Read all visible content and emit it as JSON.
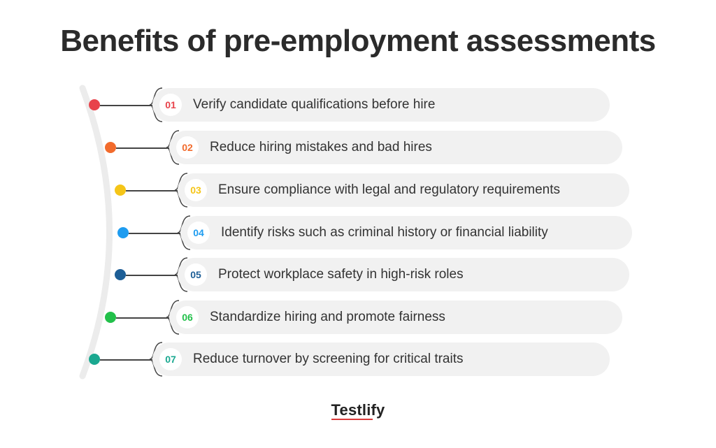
{
  "title": "Benefits of pre-employment assessments",
  "items": [
    {
      "num": "01",
      "text": "Verify candidate qualifications before hire",
      "color": "#e8434b"
    },
    {
      "num": "02",
      "text": "Reduce hiring mistakes and bad hires",
      "color": "#f26b2c"
    },
    {
      "num": "03",
      "text": "Ensure compliance with legal and regulatory requirements",
      "color": "#f5c518"
    },
    {
      "num": "04",
      "text": "Identify risks such as criminal history or financial liability",
      "color": "#1e9cf0"
    },
    {
      "num": "05",
      "text": "Protect workplace safety in high-risk roles",
      "color": "#1d5e96"
    },
    {
      "num": "06",
      "text": "Standardize hiring and promote fairness",
      "color": "#22c04a"
    },
    {
      "num": "07",
      "text": "Reduce turnover by screening for critical traits",
      "color": "#1aa890"
    }
  ],
  "logo": "Testlify"
}
